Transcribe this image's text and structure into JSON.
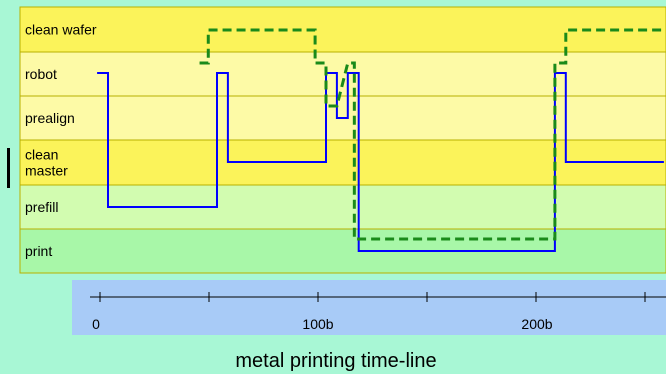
{
  "title": "metal printing time-line",
  "lanes": [
    {
      "label_lines": [
        "clean wafer"
      ],
      "color": "#fbf35a"
    },
    {
      "label_lines": [
        "robot"
      ],
      "color": "#fdfaa6"
    },
    {
      "label_lines": [
        "prealign"
      ],
      "color": "#fdfaa6"
    },
    {
      "label_lines": [
        "clean",
        "master"
      ],
      "color": "#fbf35a"
    },
    {
      "label_lines": [
        "prefill"
      ],
      "color": "#d2fcb0"
    },
    {
      "label_lines": [
        "print"
      ],
      "color": "#a8f7a8"
    }
  ],
  "axis": {
    "ticks": [
      "0",
      "100b",
      "200b"
    ],
    "minor_ticks": [
      0,
      50,
      100,
      150,
      200,
      250
    ],
    "band_color": "#a8cbf7"
  },
  "colors": {
    "wafer_trace": "#0000ff",
    "master_trace": "#1a8a1a",
    "lane_border": "#b8b000"
  },
  "wafer_trace": [
    [
      -5,
      "robot"
    ],
    [
      0,
      "robot"
    ],
    [
      0,
      "prefill"
    ],
    [
      50,
      "prefill"
    ],
    [
      50,
      "robot"
    ],
    [
      55,
      "robot"
    ],
    [
      55,
      "clean master"
    ],
    [
      100,
      "clean master"
    ],
    [
      100,
      "robot"
    ],
    [
      105,
      "robot"
    ],
    [
      105,
      "prealign"
    ],
    [
      110,
      "prealign"
    ],
    [
      110,
      "robot"
    ],
    [
      115,
      "robot"
    ],
    [
      115,
      "print"
    ],
    [
      205,
      "print"
    ],
    [
      205,
      "robot"
    ],
    [
      210,
      "robot"
    ],
    [
      210,
      "clean master"
    ],
    [
      255,
      "clean master"
    ]
  ],
  "master_trace": [
    [
      42,
      "robot"
    ],
    [
      46,
      "robot"
    ],
    [
      46,
      "clean wafer"
    ],
    [
      95,
      "clean wafer"
    ],
    [
      95,
      "robot"
    ],
    [
      100,
      "robot"
    ],
    [
      100,
      "prealign"
    ],
    [
      105,
      "prealign"
    ],
    [
      110,
      "robot"
    ],
    [
      113,
      "robot"
    ],
    [
      113,
      "print"
    ],
    [
      205,
      "print"
    ],
    [
      205,
      "robot"
    ],
    [
      210,
      "robot"
    ],
    [
      210,
      "clean wafer"
    ],
    [
      258,
      "clean wafer"
    ],
    [
      258,
      "robot"
    ]
  ]
}
